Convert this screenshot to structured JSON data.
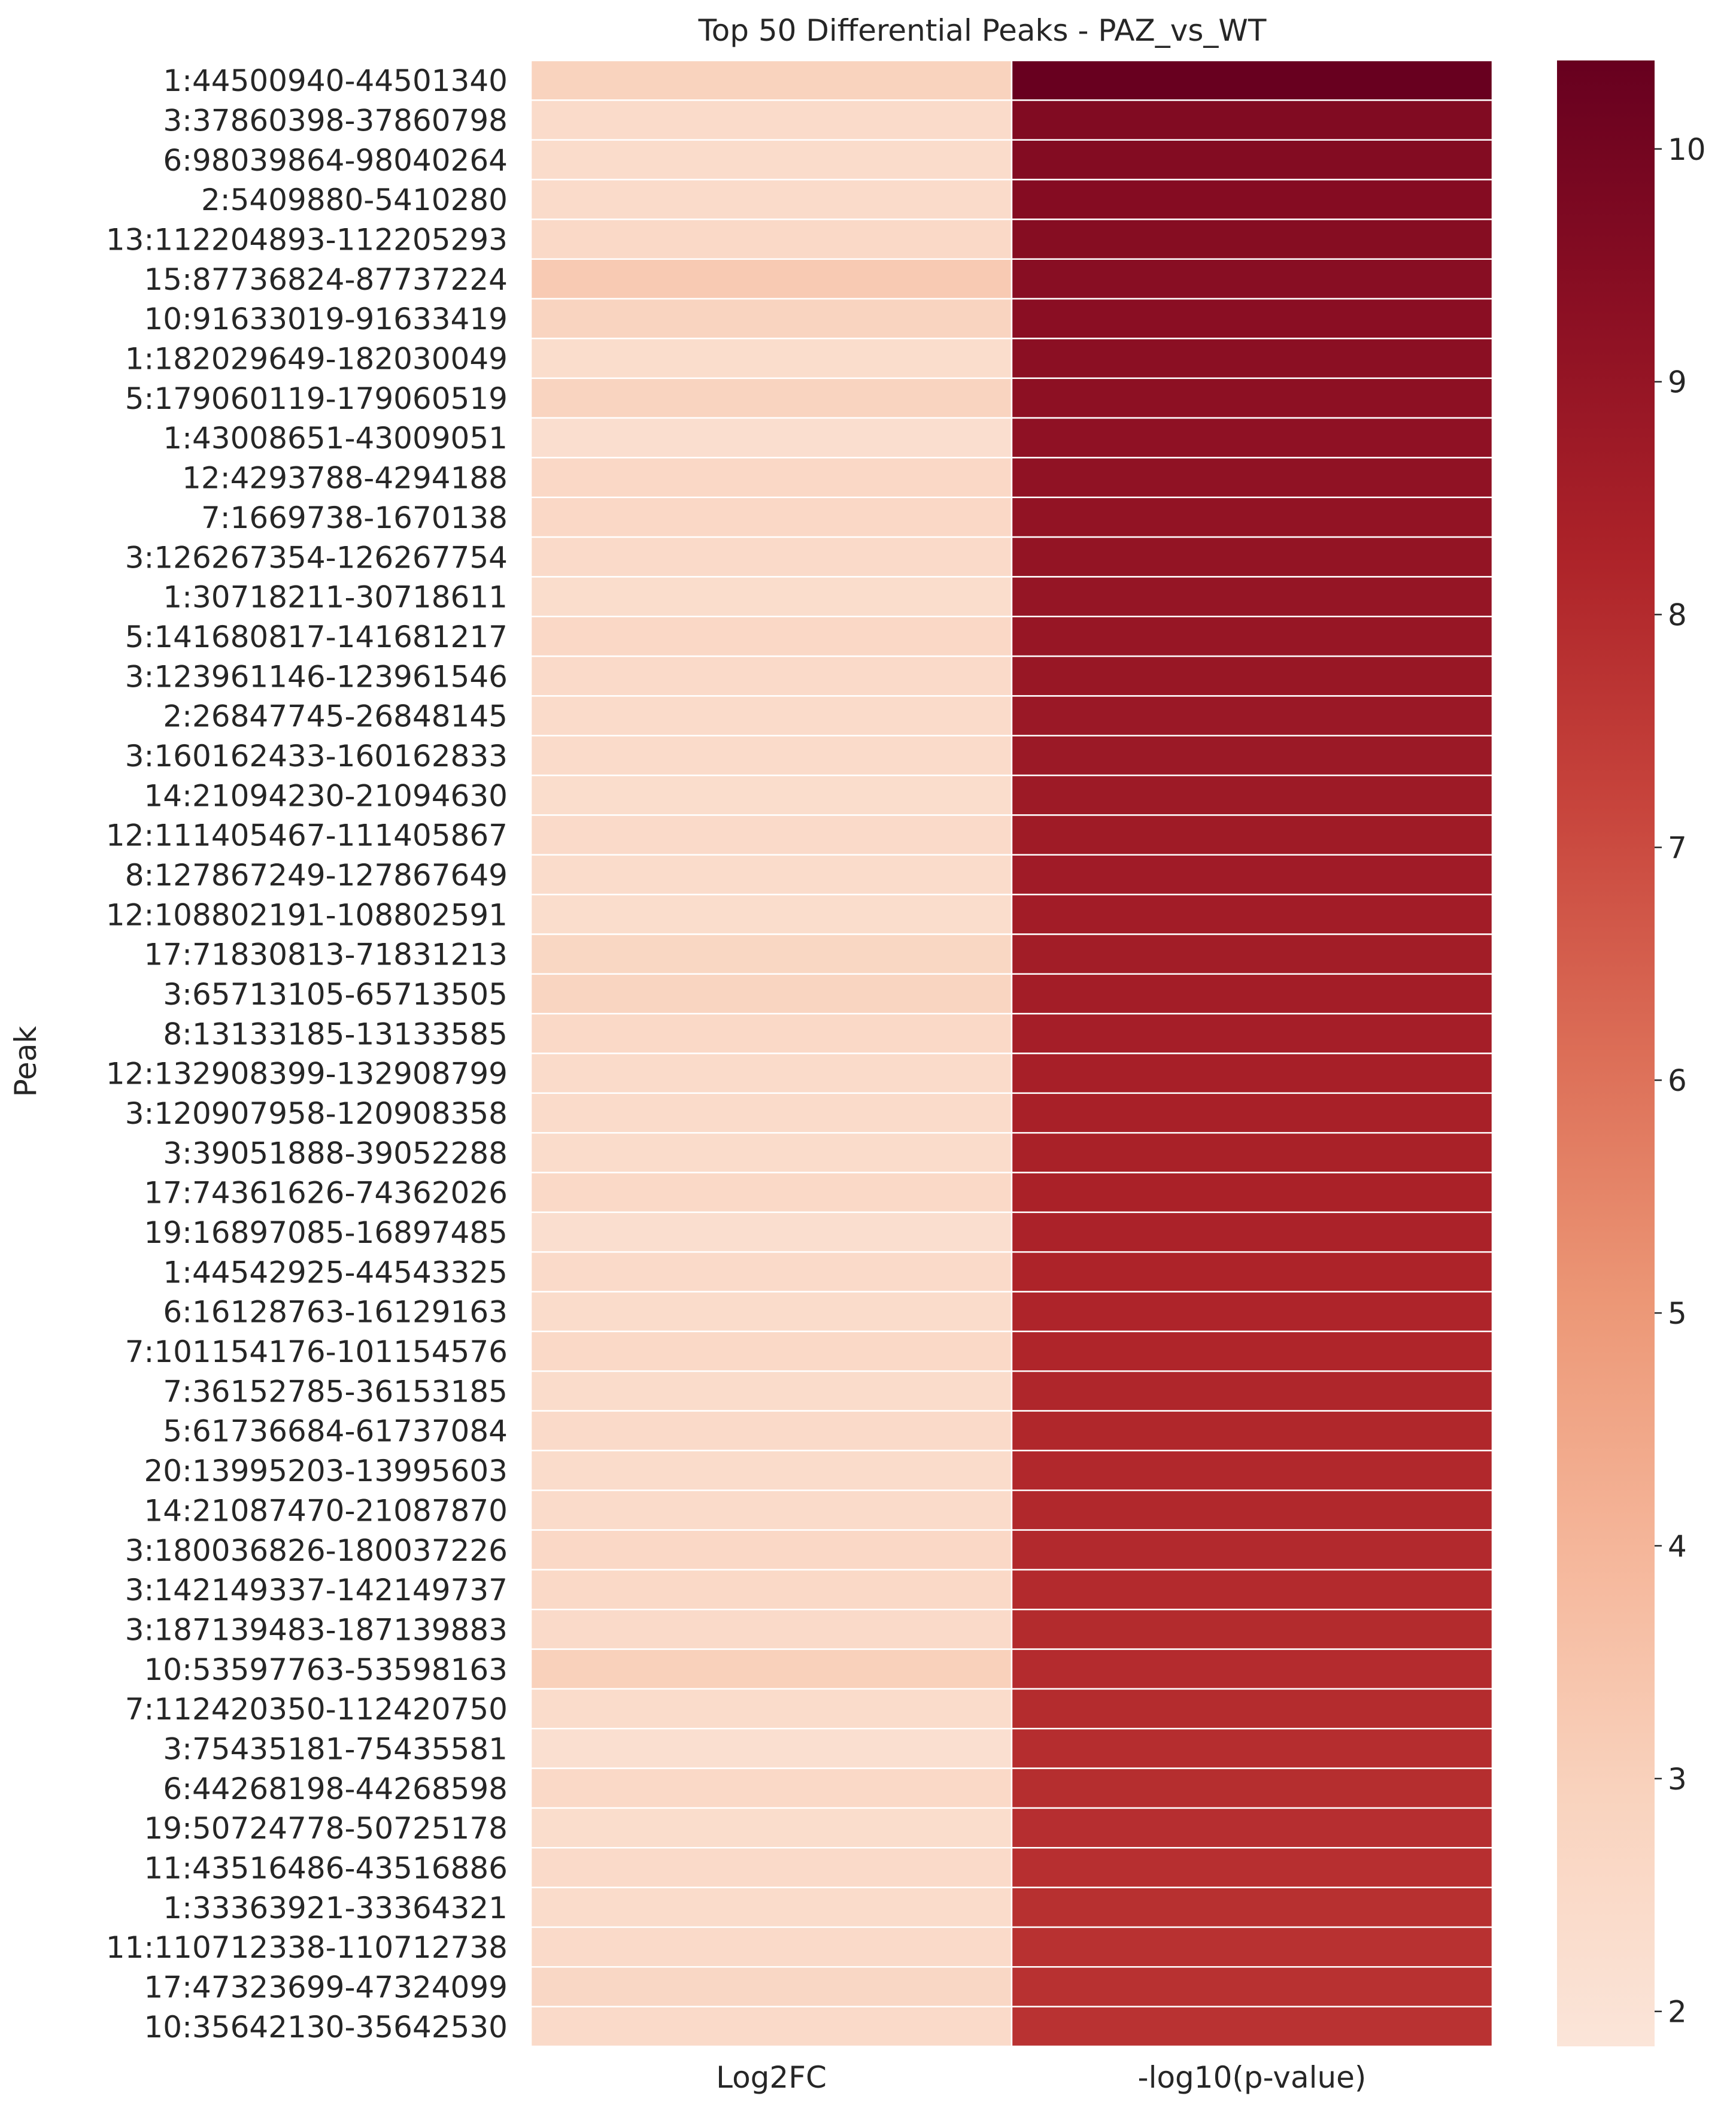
{
  "chart_data": {
    "type": "heatmap",
    "title": "Top 50 Differential Peaks - PAZ_vs_WT",
    "ylabel": "Peak",
    "xlabel": "",
    "columns": [
      "Log2FC",
      "-log10(p-value)"
    ],
    "rows": [
      "1:44500940-44501340",
      "3:37860398-37860798",
      "6:98039864-98040264",
      "2:5409880-5410280",
      "13:112204893-112205293",
      "15:87736824-87737224",
      "10:91633019-91633419",
      "1:182029649-182030049",
      "5:179060119-179060519",
      "1:43008651-43009051",
      "12:4293788-4294188",
      "7:1669738-1670138",
      "3:126267354-126267754",
      "1:30718211-30718611",
      "5:141680817-141681217",
      "3:123961146-123961546",
      "2:26847745-26848145",
      "3:160162433-160162833",
      "14:21094230-21094630",
      "12:111405467-111405867",
      "8:127867249-127867649",
      "12:108802191-108802591",
      "17:71830813-71831213",
      "3:65713105-65713505",
      "8:13133185-13133585",
      "12:132908399-132908799",
      "3:120907958-120908358",
      "3:39051888-39052288",
      "17:74361626-74362026",
      "19:16897085-16897485",
      "1:44542925-44543325",
      "6:16128763-16129163",
      "7:101154176-101154576",
      "7:36152785-36153185",
      "5:61736684-61737084",
      "20:13995203-13995603",
      "14:21087470-21087870",
      "3:180036826-180037226",
      "3:142149337-142149737",
      "3:187139483-187139883",
      "10:53597763-53598163",
      "7:112420350-112420750",
      "3:75435181-75435581",
      "6:44268198-44268598",
      "19:50724778-50725178",
      "11:43516486-43516886",
      "1:33363921-33364321",
      "11:110712338-110712738",
      "17:47323699-47324099",
      "10:35642130-35642530"
    ],
    "log2fc": [
      2.9,
      2.45,
      2.4,
      2.45,
      2.55,
      3.25,
      2.85,
      2.35,
      2.85,
      2.25,
      2.6,
      2.6,
      2.5,
      2.35,
      2.6,
      2.5,
      2.45,
      2.45,
      2.35,
      2.5,
      2.4,
      2.35,
      2.7,
      2.8,
      2.55,
      2.45,
      2.45,
      2.4,
      2.55,
      2.25,
      2.5,
      2.4,
      2.55,
      2.4,
      2.5,
      2.4,
      2.45,
      2.6,
      2.55,
      2.5,
      3.0,
      2.4,
      2.2,
      2.55,
      2.35,
      2.5,
      2.4,
      2.5,
      2.65,
      2.5
    ],
    "neglog10p": [
      10.35,
      9.6,
      9.55,
      9.5,
      9.45,
      9.4,
      9.35,
      9.3,
      9.25,
      9.2,
      9.15,
      9.1,
      9.05,
      9.0,
      8.95,
      8.9,
      8.85,
      8.8,
      8.75,
      8.7,
      8.65,
      8.6,
      8.58,
      8.55,
      8.5,
      8.45,
      8.4,
      8.38,
      8.35,
      8.3,
      8.25,
      8.2,
      8.18,
      8.15,
      8.12,
      8.1,
      8.07,
      8.05,
      8.02,
      8.0,
      7.98,
      7.95,
      7.92,
      7.9,
      7.88,
      7.85,
      7.83,
      7.8,
      7.78,
      7.75
    ],
    "colorbar": {
      "min": 1.85,
      "max": 10.38,
      "ticks": [
        2,
        3,
        4,
        5,
        6,
        7,
        8,
        9,
        10
      ],
      "colormap": "Reds"
    },
    "colors": {
      "scale": [
        "#fbe5d9",
        "#f9d3be",
        "#f5b69a",
        "#ec9776",
        "#dc6e57",
        "#c7443c",
        "#ad2329",
        "#8b0f23",
        "#67001f"
      ],
      "grid": "#ffffff",
      "text": "#262626"
    }
  }
}
